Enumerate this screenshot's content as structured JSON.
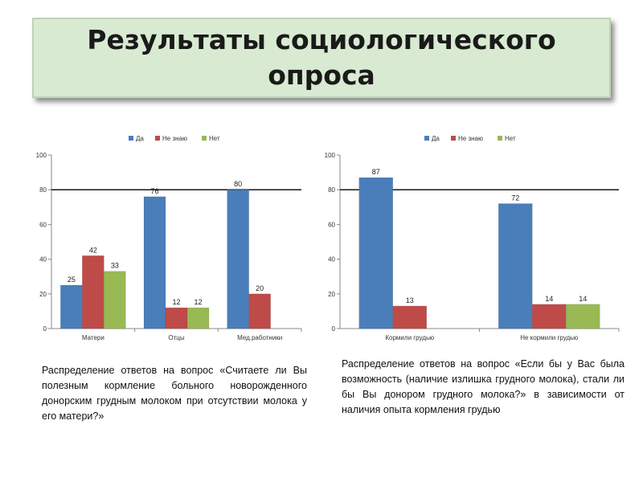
{
  "title": "Результаты социологического опроса",
  "chart_data": [
    {
      "type": "bar",
      "categories": [
        "Матери",
        "Отцы",
        "Мед.работники"
      ],
      "series": [
        {
          "name": "Да",
          "color": "#4a7ebb",
          "values": [
            25,
            76,
            80
          ]
        },
        {
          "name": "Не знаю",
          "color": "#be4b48",
          "values": [
            42,
            12,
            20
          ]
        },
        {
          "name": "Нет",
          "color": "#98b954",
          "values": [
            33,
            12,
            null
          ]
        }
      ],
      "value_labels": [
        [
          "25",
          "42",
          "33"
        ],
        [
          "76",
          "12",
          "12"
        ],
        [
          "80",
          "20",
          ""
        ]
      ],
      "ylim": [
        0,
        100
      ],
      "yticks": [
        "0",
        "20",
        "40",
        "60",
        "80",
        "100"
      ],
      "legend": "top",
      "grid": "major-80",
      "caption": "Распределение ответов на вопрос «Считаете ли Вы полезным кормление больного новорожденного донорским грудным молоком при отсутствии молока у его матери?»"
    },
    {
      "type": "bar",
      "categories": [
        "Кормили грудью",
        "Не кормили грудью"
      ],
      "series": [
        {
          "name": "Да",
          "color": "#4a7ebb",
          "values": [
            87,
            72
          ]
        },
        {
          "name": "Не знаю",
          "color": "#be4b48",
          "values": [
            13,
            14
          ]
        },
        {
          "name": "Нет",
          "color": "#98b954",
          "values": [
            null,
            14
          ]
        }
      ],
      "value_labels": [
        [
          "87",
          "13",
          ""
        ],
        [
          "72",
          "14",
          "14"
        ]
      ],
      "ylim": [
        0,
        100
      ],
      "yticks": [
        "0",
        "20",
        "40",
        "60",
        "80",
        "100"
      ],
      "legend": "top",
      "grid": "major-80",
      "caption": "Распределение ответов на вопрос «Если бы у Вас была возможность (наличие излишка грудного молока), стали ли бы Вы донором грудного молока?» в зависимости от наличия опыта кормления грудью"
    }
  ]
}
